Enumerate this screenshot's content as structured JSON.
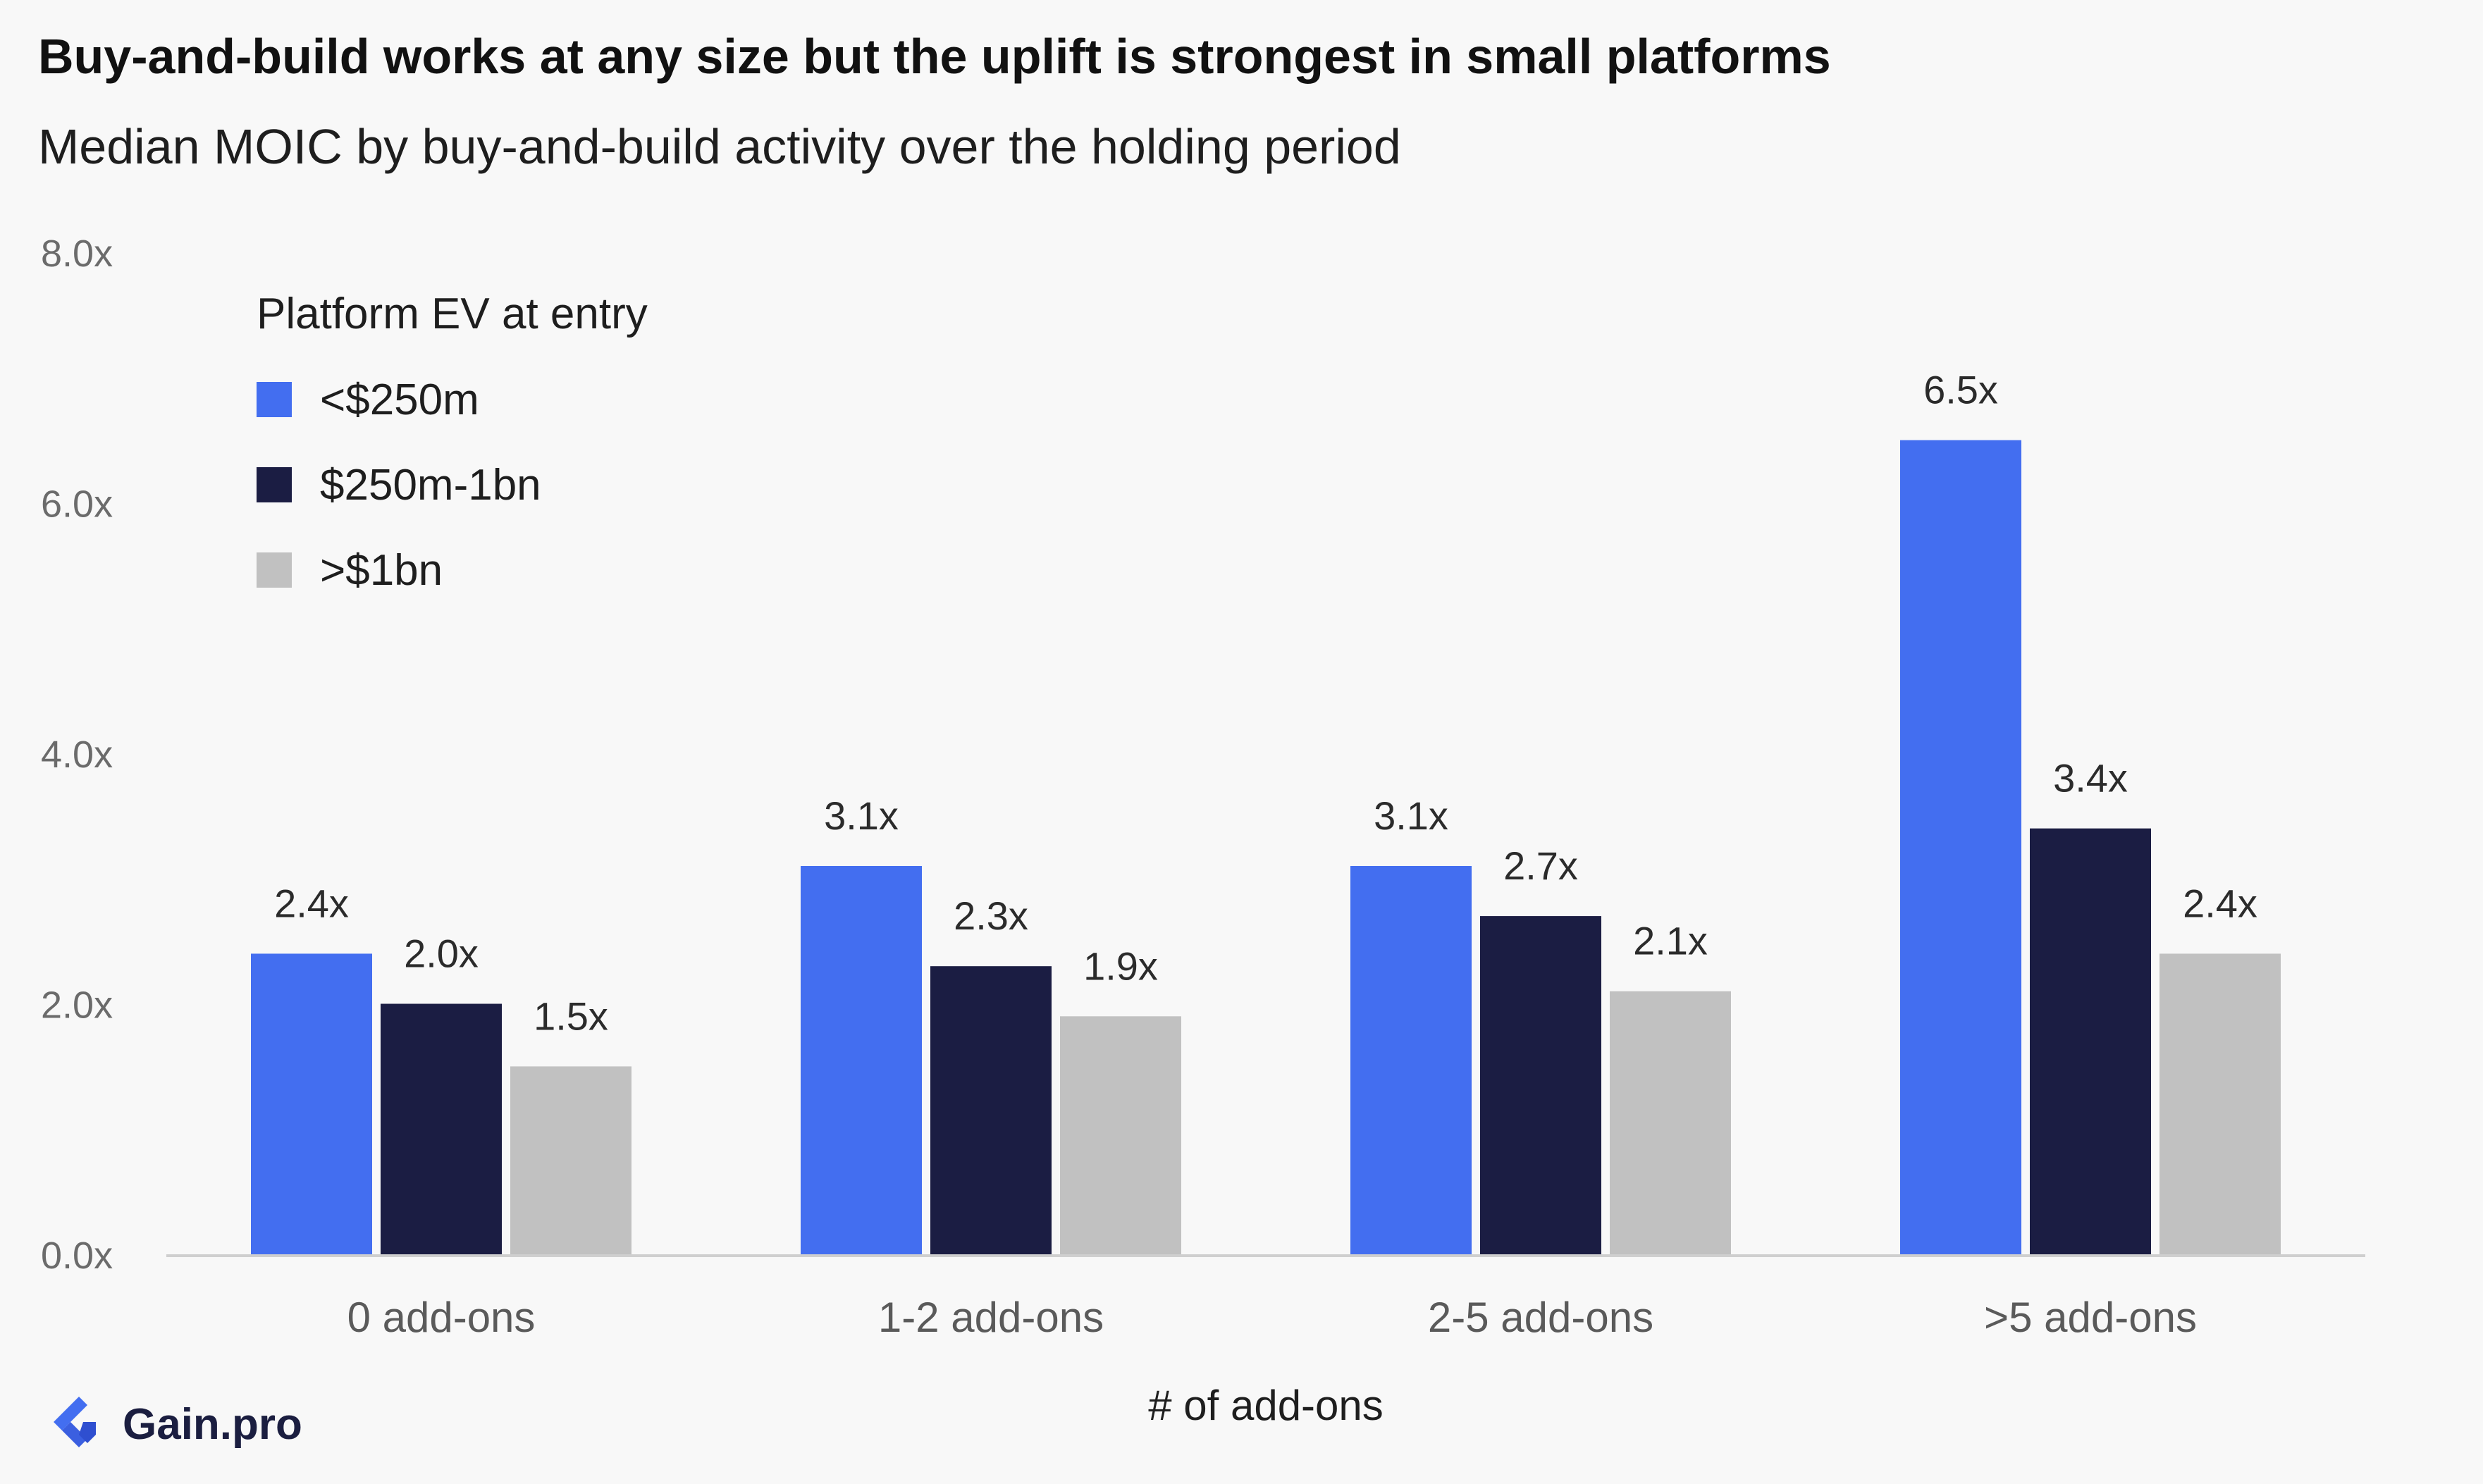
{
  "title": "Buy-and-build works at any size but the uplift is strongest in small platforms",
  "subtitle": "Median MOIC by buy-and-build activity over the holding period",
  "legend": {
    "title": "Platform EV at entry",
    "items": [
      {
        "label": "<$250m",
        "color": "#436ef0"
      },
      {
        "label": "$250m-1bn",
        "color": "#1b1d43"
      },
      {
        "label": ">$1bn",
        "color": "#c1c1c1"
      }
    ]
  },
  "brand": {
    "name": "Gain.pro",
    "color": "#436ef0"
  },
  "chart_data": {
    "type": "bar",
    "xlabel": "# of add-ons",
    "ylabel": "",
    "ylim": [
      0,
      8
    ],
    "yticks": [
      0,
      2,
      4,
      6,
      8
    ],
    "ytick_labels": [
      "0.0x",
      "2.0x",
      "4.0x",
      "6.0x",
      "8.0x"
    ],
    "categories": [
      "0 add-ons",
      "1-2 add-ons",
      "2-5 add-ons",
      ">5 add-ons"
    ],
    "series": [
      {
        "name": "<$250m",
        "color": "#436ef0",
        "values": [
          2.4,
          3.1,
          3.1,
          6.5
        ],
        "labels": [
          "2.4x",
          "3.1x",
          "3.1x",
          "6.5x"
        ]
      },
      {
        "name": "$250m-1bn",
        "color": "#1b1d43",
        "values": [
          2.0,
          2.3,
          2.7,
          3.4
        ],
        "labels": [
          "2.0x",
          "2.3x",
          "2.7x",
          "3.4x"
        ]
      },
      {
        "name": ">$1bn",
        "color": "#c1c1c1",
        "values": [
          1.5,
          1.9,
          2.1,
          2.4
        ],
        "labels": [
          "1.5x",
          "1.9x",
          "2.1x",
          "2.4x"
        ]
      }
    ],
    "grid": false,
    "legend_position": "top-left"
  }
}
